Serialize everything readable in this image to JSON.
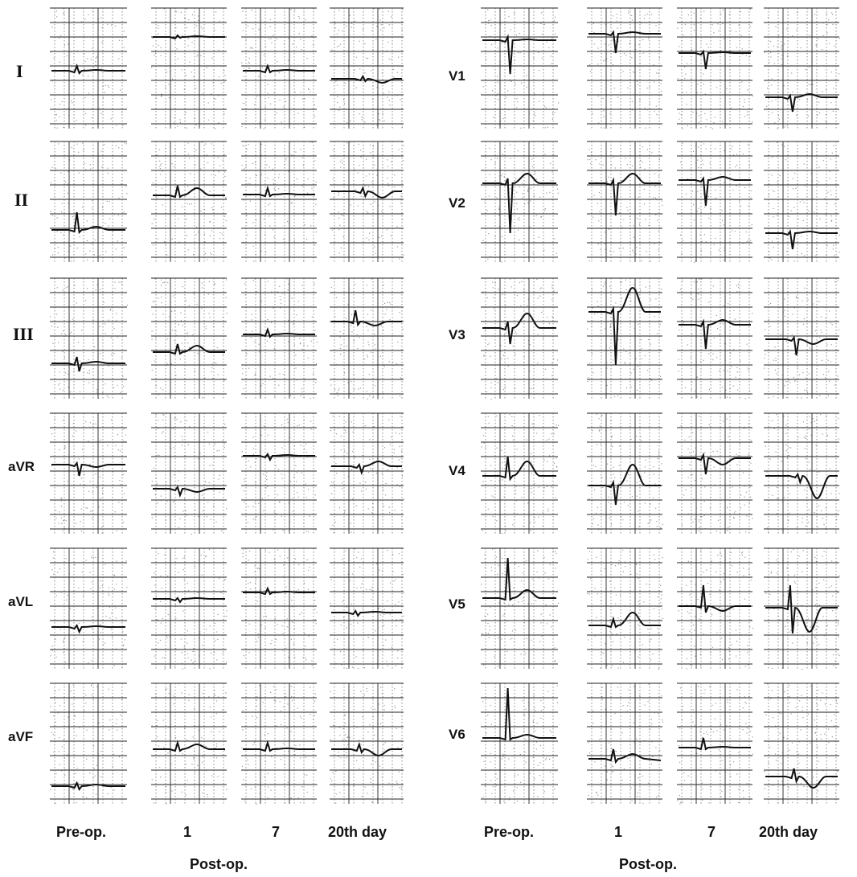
{
  "left_panel": {
    "leads": [
      "I",
      "II",
      "III",
      "aVR",
      "aVL",
      "aVF"
    ],
    "columns": [
      "Pre-op.",
      "1",
      "7",
      "20th day"
    ],
    "group_label": "Post-op."
  },
  "right_panel": {
    "leads": [
      "V1",
      "V2",
      "V3",
      "V4",
      "V5",
      "V6"
    ],
    "columns": [
      "Pre-op.",
      "1",
      "7",
      "20th day"
    ],
    "group_label": "Post-op."
  },
  "colors": {
    "ink": "#111111",
    "grid_major": "#222222",
    "grid_minor": "#555555",
    "paper": "#ffffff"
  }
}
